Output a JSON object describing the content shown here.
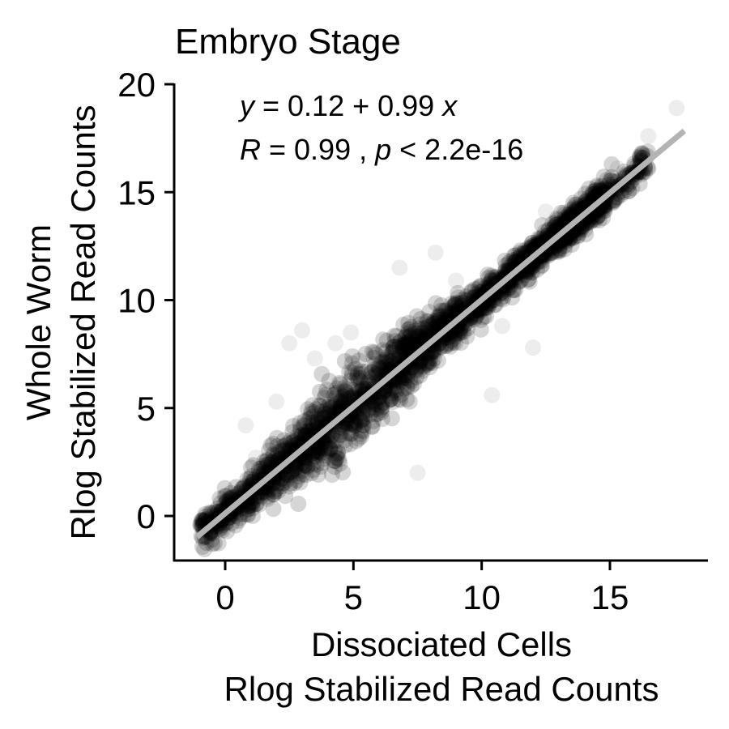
{
  "chart_data": {
    "type": "scatter",
    "title": "Embryo Stage",
    "xlabel_lines": [
      "Dissociated Cells",
      "Rlog Stabilized Read Counts"
    ],
    "ylabel_lines": [
      "Whole Worm",
      "Rlog Stabilized Read Counts"
    ],
    "xlim": [
      -2,
      18.5
    ],
    "ylim": [
      -2,
      20
    ],
    "xticks": [
      0,
      5,
      10,
      15
    ],
    "yticks": [
      0,
      5,
      10,
      15,
      20
    ],
    "xtick_labels": [
      "0",
      "5",
      "10",
      "15"
    ],
    "ytick_labels": [
      "0",
      "5",
      "10",
      "15",
      "20"
    ],
    "grid": false,
    "legend": "none",
    "point_color": "#000000",
    "point_alpha": 0.04,
    "fit_line": {
      "intercept": 0.12,
      "slope": 0.99,
      "x_range": [
        -1.1,
        17.9
      ],
      "color": "#b3b3b3"
    },
    "annotation": {
      "equation": {
        "var_y": "y",
        "eq": " = 0.12 + 0.99 ",
        "var_x": "x"
      },
      "stats": {
        "var_r": "R",
        "r_text": " = 0.99 , ",
        "var_p": "p",
        "p_text": " < 2.2e-16"
      }
    },
    "series": [
      {
        "points_summary": "dense cloud of gene expression points tightly following the fit line",
        "x_range": [
          -1.1,
          17.9
        ],
        "y_range": [
          -1.1,
          18.9
        ],
        "outliers": [
          [
            17.6,
            18.9
          ],
          [
            16.5,
            17.6
          ],
          [
            15.3,
            16.1
          ],
          [
            3.0,
            8.6
          ],
          [
            2.5,
            8.0
          ],
          [
            4.3,
            8.0
          ],
          [
            4.9,
            8.5
          ],
          [
            6.8,
            11.5
          ],
          [
            3.5,
            7.3
          ],
          [
            0.8,
            4.2
          ],
          [
            10.4,
            5.6
          ],
          [
            7.5,
            2.0
          ],
          [
            6.0,
            5.5
          ],
          [
            8.2,
            12.2
          ],
          [
            12.5,
            14.1
          ],
          [
            10.8,
            8.8
          ],
          [
            2.0,
            5.3
          ],
          [
            12.0,
            7.8
          ],
          [
            9.0,
            10.9
          ],
          [
            1.2,
            2.7
          ]
        ]
      }
    ]
  }
}
